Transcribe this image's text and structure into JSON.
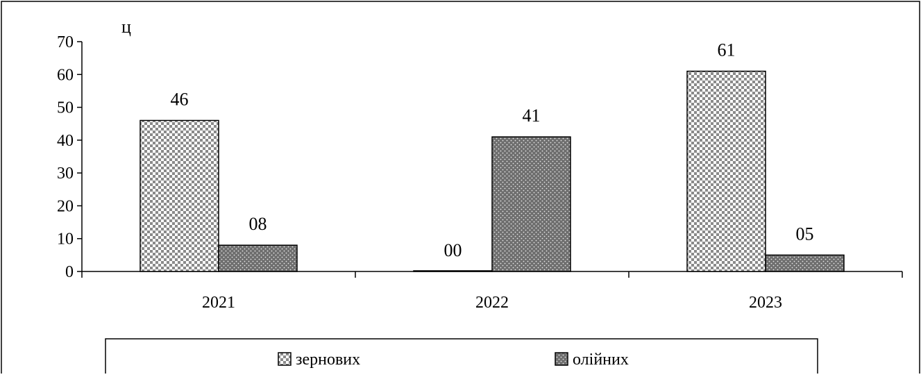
{
  "chart_data": {
    "type": "bar",
    "ylabel": "ц",
    "ylim": [
      0,
      70
    ],
    "y_ticks": [
      "0",
      "10",
      "20",
      "30",
      "40",
      "50",
      "60",
      "70"
    ],
    "categories": [
      "2021",
      "2022",
      "2023"
    ],
    "series": [
      {
        "name": "зернових",
        "values": [
          46,
          0,
          61
        ],
        "labels": [
          "46",
          "00",
          "61"
        ],
        "pattern": "checker"
      },
      {
        "name": "олійних",
        "values": [
          8,
          41,
          5
        ],
        "labels": [
          "08",
          "41",
          "05"
        ],
        "pattern": "dotted"
      }
    ],
    "legend_position": "bottom",
    "grid": false
  },
  "colors": {
    "checker_light": "#ffffff",
    "checker_dark": "#8a8a8a",
    "dotted_fill": "#6e6e6e",
    "dotted_dot": "#e6e6e6",
    "stroke": "#000000"
  }
}
